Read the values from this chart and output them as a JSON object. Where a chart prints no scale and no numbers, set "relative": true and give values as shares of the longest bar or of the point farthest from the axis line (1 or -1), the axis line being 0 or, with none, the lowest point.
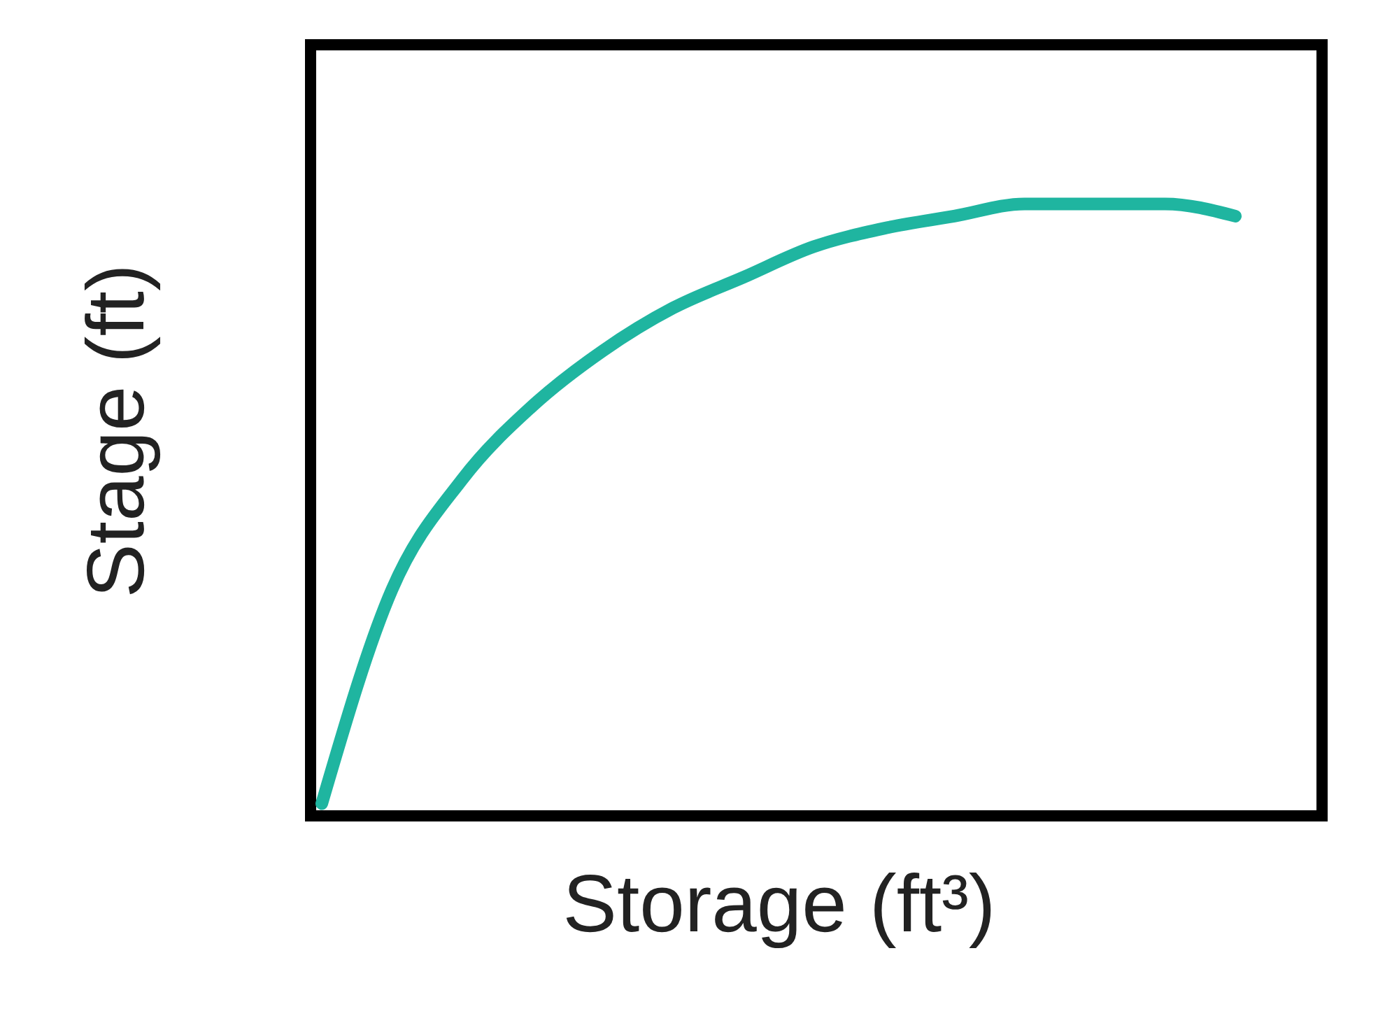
{
  "chart_data": {
    "type": "line",
    "xlabel": "Storage (ft³)",
    "ylabel": "Stage (ft)",
    "relative": true,
    "color": "#1fb5a0",
    "categories": [
      null,
      null,
      null,
      null,
      null,
      null,
      null,
      null,
      null,
      null,
      null,
      null,
      null,
      null
    ],
    "values": [
      0.02,
      0.37,
      0.55,
      0.67,
      0.76,
      0.83,
      0.88,
      0.93,
      0.96,
      0.98,
      1.0,
      1.0,
      1.0,
      0.98
    ]
  }
}
